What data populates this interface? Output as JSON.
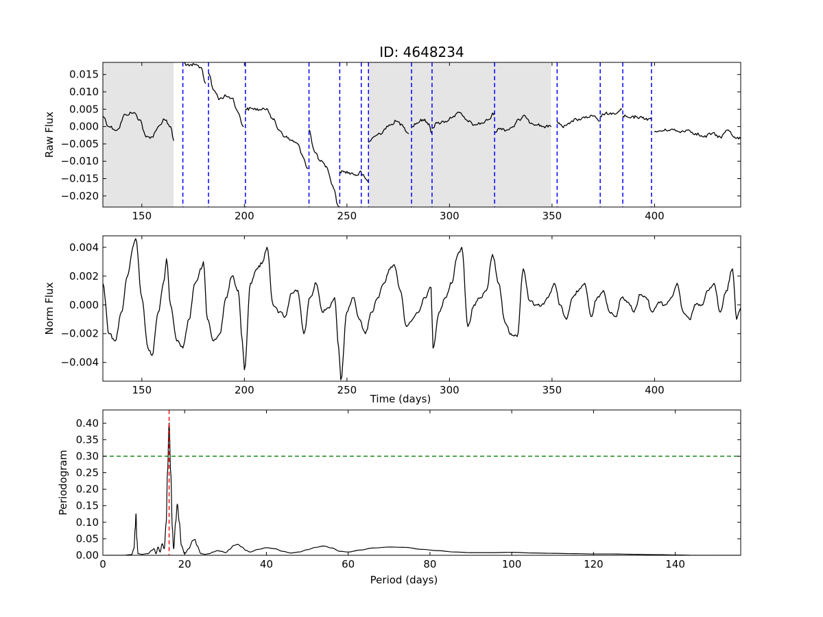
{
  "title": "ID: 4648234",
  "chart_data": [
    {
      "type": "line",
      "panel": "raw-flux",
      "xlabel": "",
      "ylabel": "Raw Flux",
      "xlim": [
        131,
        442
      ],
      "ylim": [
        -0.0232,
        0.0185
      ],
      "xticks": [
        150,
        200,
        250,
        300,
        350,
        400
      ],
      "xtick_labels": [
        "150",
        "200",
        "250",
        "300",
        "350",
        "400"
      ],
      "yticks": [
        0.015,
        0.01,
        0.005,
        0.0,
        -0.005,
        -0.01,
        -0.015,
        -0.02
      ],
      "ytick_labels": [
        "0.015",
        "0.010",
        "0.005",
        "0.000",
        "−0.005",
        "−0.010",
        "−0.015",
        "−0.020"
      ],
      "shaded_regions": [
        [
          131,
          165.5
        ],
        [
          260.5,
          349.5
        ]
      ],
      "shade_color": "#e5e5e5",
      "segment_lines": [
        170,
        182.5,
        200.5,
        231.5,
        246.5,
        257,
        260.5,
        281.5,
        291.5,
        322,
        352.5,
        373.5,
        384.5,
        398.5
      ],
      "segment_line_color": "#0000ff",
      "series": [
        {
          "x": [
            131,
            134,
            138,
            142,
            146,
            149,
            152,
            155,
            158,
            161,
            164,
            165.5,
            null,
            170,
            173,
            176,
            179,
            181,
            null,
            182.5,
            185,
            188,
            191,
            194,
            197,
            199.5,
            null,
            200.5,
            204,
            208,
            211,
            214,
            217,
            220,
            223,
            226,
            228,
            231,
            null,
            231.5,
            234,
            237,
            240,
            243,
            246,
            null,
            246.5,
            249,
            252,
            255,
            257,
            null,
            257,
            259,
            260.5,
            null,
            260.5,
            263,
            266,
            270,
            274,
            277,
            280,
            null,
            281.5,
            284,
            287,
            290,
            291.5,
            null,
            291.5,
            294,
            298,
            302,
            305,
            308,
            312,
            316,
            319,
            322,
            null,
            322,
            325,
            328,
            331,
            334,
            337,
            340,
            343,
            346,
            349.5,
            null,
            352.5,
            355,
            358,
            362,
            366,
            370,
            373,
            null,
            373.5,
            376,
            379,
            382,
            384,
            null,
            384.5,
            388,
            391,
            394,
            397,
            398.5,
            null,
            400,
            404,
            408,
            412,
            416,
            420,
            424,
            428,
            432,
            436,
            439,
            442
          ],
          "y": [
            0.003,
            0.0,
            -0.001,
            0.0035,
            0.004,
            0.002,
            -0.003,
            -0.003,
            0.0,
            0.002,
            0.0,
            -0.004,
            null,
            0.0185,
            0.0175,
            0.0178,
            0.017,
            0.0125,
            null,
            0.0155,
            0.0105,
            0.008,
            0.0088,
            0.0082,
            0.004,
            0.0,
            null,
            0.005,
            0.0052,
            0.0048,
            0.0052,
            0.002,
            -0.001,
            -0.003,
            -0.004,
            -0.005,
            -0.008,
            -0.012,
            null,
            -0.001,
            -0.007,
            -0.01,
            -0.0115,
            -0.017,
            -0.0232,
            null,
            -0.013,
            -0.013,
            -0.0135,
            -0.014,
            -0.013,
            null,
            -0.0135,
            -0.015,
            -0.016,
            null,
            -0.0045,
            -0.003,
            -0.002,
            0.0,
            0.0015,
            0.0005,
            -0.002,
            null,
            0.0,
            0.001,
            0.002,
            0.0008,
            -0.002,
            null,
            -0.0005,
            0.001,
            0.0015,
            0.003,
            0.004,
            0.002,
            0.0005,
            0.001,
            0.002,
            0.004,
            null,
            -0.0015,
            -0.0005,
            -0.001,
            0.0,
            0.002,
            0.003,
            0.001,
            0.0005,
            0.0,
            0.0,
            null,
            0.0015,
            0.0,
            0.001,
            0.002,
            0.0025,
            0.003,
            0.0015,
            null,
            0.003,
            0.0038,
            0.0035,
            0.004,
            0.005,
            null,
            0.003,
            0.0025,
            0.0028,
            0.0025,
            0.0022,
            0.002,
            null,
            -0.0015,
            -0.0012,
            -0.0008,
            -0.0015,
            -0.001,
            -0.002,
            -0.003,
            -0.002,
            -0.003,
            -0.001,
            -0.003,
            -0.0035
          ]
        }
      ]
    },
    {
      "type": "line",
      "panel": "norm-flux",
      "xlabel": "Time (days)",
      "ylabel": "Norm Flux",
      "xlim": [
        131,
        442
      ],
      "ylim": [
        -0.0053,
        0.0048
      ],
      "xticks": [
        150,
        200,
        250,
        300,
        350,
        400
      ],
      "xtick_labels": [
        "150",
        "200",
        "250",
        "300",
        "350",
        "400"
      ],
      "yticks": [
        0.004,
        0.002,
        0.0,
        -0.002,
        -0.004
      ],
      "ytick_labels": [
        "0.004",
        "0.002",
        "0.000",
        "−0.002",
        "−0.004"
      ],
      "series": [
        {
          "x": [
            131,
            134,
            137,
            140,
            143,
            146,
            147,
            150,
            153,
            155,
            158,
            161,
            162,
            164,
            167,
            170,
            173,
            176,
            179,
            180,
            182,
            185,
            188,
            191,
            194,
            197,
            199,
            200,
            203,
            206,
            209,
            211,
            214,
            217,
            220,
            223,
            226,
            229,
            232,
            235,
            238,
            241,
            244,
            246,
            247,
            250,
            253,
            256,
            259,
            262,
            265,
            268,
            271,
            273,
            276,
            279,
            282,
            285,
            288,
            291,
            292,
            295,
            298,
            301,
            304,
            306,
            309,
            312,
            315,
            318,
            321,
            324,
            327,
            330,
            333,
            336,
            339,
            342,
            345,
            348,
            351,
            354,
            357,
            360,
            363,
            366,
            369,
            372,
            375,
            378,
            381,
            384,
            387,
            390,
            393,
            396,
            399,
            402,
            405,
            408,
            411,
            414,
            417,
            420,
            423,
            426,
            429,
            432,
            435,
            438,
            440,
            442
          ],
          "y": [
            0.0015,
            -0.002,
            -0.0025,
            -0.0005,
            0.002,
            0.0042,
            0.0046,
            0.0005,
            -0.003,
            -0.0035,
            -0.0005,
            0.0018,
            0.0032,
            0.0,
            -0.0025,
            -0.003,
            -0.001,
            0.0015,
            0.0025,
            0.003,
            -0.001,
            -0.0025,
            -0.002,
            0.0005,
            0.002,
            0.001,
            -0.0025,
            -0.0045,
            0.0015,
            0.0025,
            0.003,
            0.004,
            0.0,
            -0.0005,
            -0.0008,
            0.0008,
            0.001,
            -0.002,
            0.0005,
            0.0015,
            -0.0005,
            -0.0002,
            0.0005,
            -0.003,
            -0.0052,
            -0.0005,
            0.0005,
            -0.001,
            -0.002,
            -0.0005,
            0.0005,
            0.0015,
            0.0025,
            0.0028,
            0.001,
            -0.0015,
            -0.001,
            -0.0005,
            0.0005,
            0.0012,
            -0.003,
            -0.0005,
            0.0005,
            0.0015,
            0.0035,
            0.004,
            -0.0015,
            0.0,
            0.0005,
            0.001,
            0.0035,
            0.0015,
            -0.0012,
            -0.002,
            -0.0022,
            0.0025,
            0.0003,
            0.0,
            0.0,
            0.0005,
            0.0015,
            0.0,
            -0.001,
            0.0005,
            0.001,
            0.0015,
            -0.0008,
            0.0005,
            0.001,
            -0.0005,
            -0.0008,
            0.0005,
            0.0002,
            -0.0005,
            0.0007,
            0.0005,
            -0.0005,
            0.0002,
            0.0,
            0.0005,
            0.0015,
            -0.0005,
            -0.001,
            0.0,
            0.0,
            0.001,
            0.0015,
            -0.0005,
            0.001,
            0.0025,
            -0.001,
            -0.0002
          ]
        }
      ]
    },
    {
      "type": "line",
      "panel": "periodogram",
      "xlabel": "Period (days)",
      "ylabel": "Periodogram",
      "xlim": [
        0,
        156
      ],
      "ylim": [
        0,
        0.44
      ],
      "xticks": [
        0,
        20,
        40,
        60,
        80,
        100,
        120,
        140
      ],
      "xtick_labels": [
        "0",
        "20",
        "40",
        "60",
        "80",
        "100",
        "120",
        "140"
      ],
      "yticks": [
        0.0,
        0.05,
        0.1,
        0.15,
        0.2,
        0.25,
        0.3,
        0.35,
        0.4
      ],
      "ytick_labels": [
        "0.00",
        "0.05",
        "0.10",
        "0.15",
        "0.20",
        "0.25",
        "0.30",
        "0.35",
        "0.40"
      ],
      "threshold": 0.3,
      "threshold_color": "#008000",
      "best_period": 16.2,
      "best_period_color": "#ff0000",
      "series": [
        {
          "x": [
            0.5,
            5,
            7,
            7.6,
            7.9,
            8.1,
            8.3,
            8.6,
            9.5,
            11,
            12,
            12.5,
            13,
            13.5,
            14,
            14.5,
            15,
            15.5,
            15.8,
            16.2,
            16.6,
            17,
            17.3,
            17.8,
            18.2,
            18.7,
            19.2,
            20,
            21,
            22,
            22.5,
            23,
            24,
            25,
            26,
            27,
            28,
            29,
            30,
            31,
            32,
            33,
            34,
            35,
            36,
            38,
            40,
            42,
            44,
            46,
            48,
            50,
            52,
            54,
            56,
            58,
            60,
            63,
            66,
            70,
            74,
            78,
            82,
            86,
            90,
            95,
            100,
            105,
            110,
            115,
            120,
            125,
            130,
            135,
            140,
            145,
            150,
            156
          ],
          "y": [
            0.0,
            0.0,
            0.002,
            0.02,
            0.08,
            0.125,
            0.05,
            0.005,
            0.003,
            0.005,
            0.015,
            0.02,
            0.005,
            0.025,
            0.01,
            0.035,
            0.02,
            0.1,
            0.25,
            0.4,
            0.25,
            0.08,
            0.02,
            0.1,
            0.155,
            0.1,
            0.03,
            0.005,
            0.02,
            0.045,
            0.048,
            0.03,
            0.005,
            0.003,
            0.005,
            0.01,
            0.014,
            0.012,
            0.008,
            0.018,
            0.03,
            0.033,
            0.025,
            0.015,
            0.01,
            0.018,
            0.023,
            0.02,
            0.012,
            0.007,
            0.01,
            0.017,
            0.024,
            0.028,
            0.022,
            0.012,
            0.01,
            0.016,
            0.022,
            0.025,
            0.024,
            0.018,
            0.014,
            0.01,
            0.008,
            0.008,
            0.009,
            0.007,
            0.006,
            0.005,
            0.004,
            0.004,
            0.003,
            0.002,
            0.001,
            0.0,
            0.0,
            0.0
          ]
        }
      ]
    }
  ]
}
